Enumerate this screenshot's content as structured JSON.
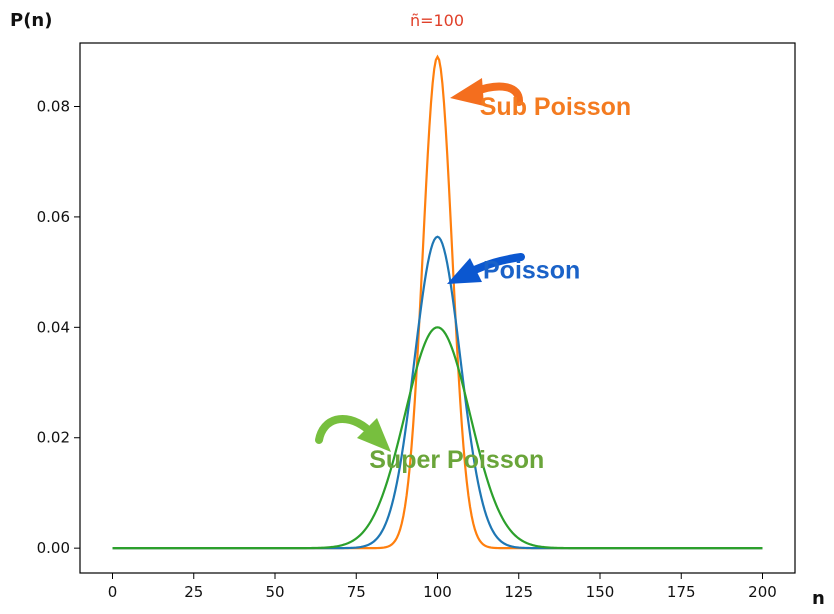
{
  "chart_data": {
    "type": "line",
    "title": "ñ=100",
    "xlabel": "n",
    "ylabel": "P(n)",
    "xlim": [
      -10,
      210
    ],
    "ylim": [
      -0.0045,
      0.0915
    ],
    "xticks": [
      0,
      25,
      50,
      75,
      100,
      125,
      150,
      175,
      200
    ],
    "yticks": [
      0.0,
      0.02,
      0.04,
      0.06,
      0.08
    ],
    "xtick_labels": [
      "0",
      "25",
      "50",
      "75",
      "100",
      "125",
      "150",
      "175",
      "200"
    ],
    "ytick_labels": [
      "0.00",
      "0.02",
      "0.04",
      "0.06",
      "0.08"
    ],
    "grid": false,
    "series": [
      {
        "key": "sub",
        "mean": 100,
        "sigma": 4.5,
        "peak": 0.089,
        "color": "#ff7f0e"
      },
      {
        "key": "poisson",
        "mean": 100,
        "sigma": 7.07,
        "peak": 0.0564,
        "color": "#1f77b4"
      },
      {
        "key": "super",
        "mean": 100,
        "sigma": 10.0,
        "peak": 0.04,
        "color": "#2ca02c"
      }
    ],
    "x_range": [
      0,
      200
    ],
    "annotations": [
      {
        "text": "Sub Poisson",
        "x": 113,
        "y": 0.0785,
        "color": "#f47b20",
        "arrow_color": "#f46e1e"
      },
      {
        "text": "Poisson",
        "x": 114,
        "y": 0.0488,
        "color": "#1a62c8",
        "arrow_color": "#0b57d0"
      },
      {
        "text": "Super Poisson",
        "x": 79,
        "y": 0.0145,
        "color": "#6aa53a",
        "arrow_color": "#77bf3e"
      }
    ],
    "title_color": "#e0402a"
  }
}
